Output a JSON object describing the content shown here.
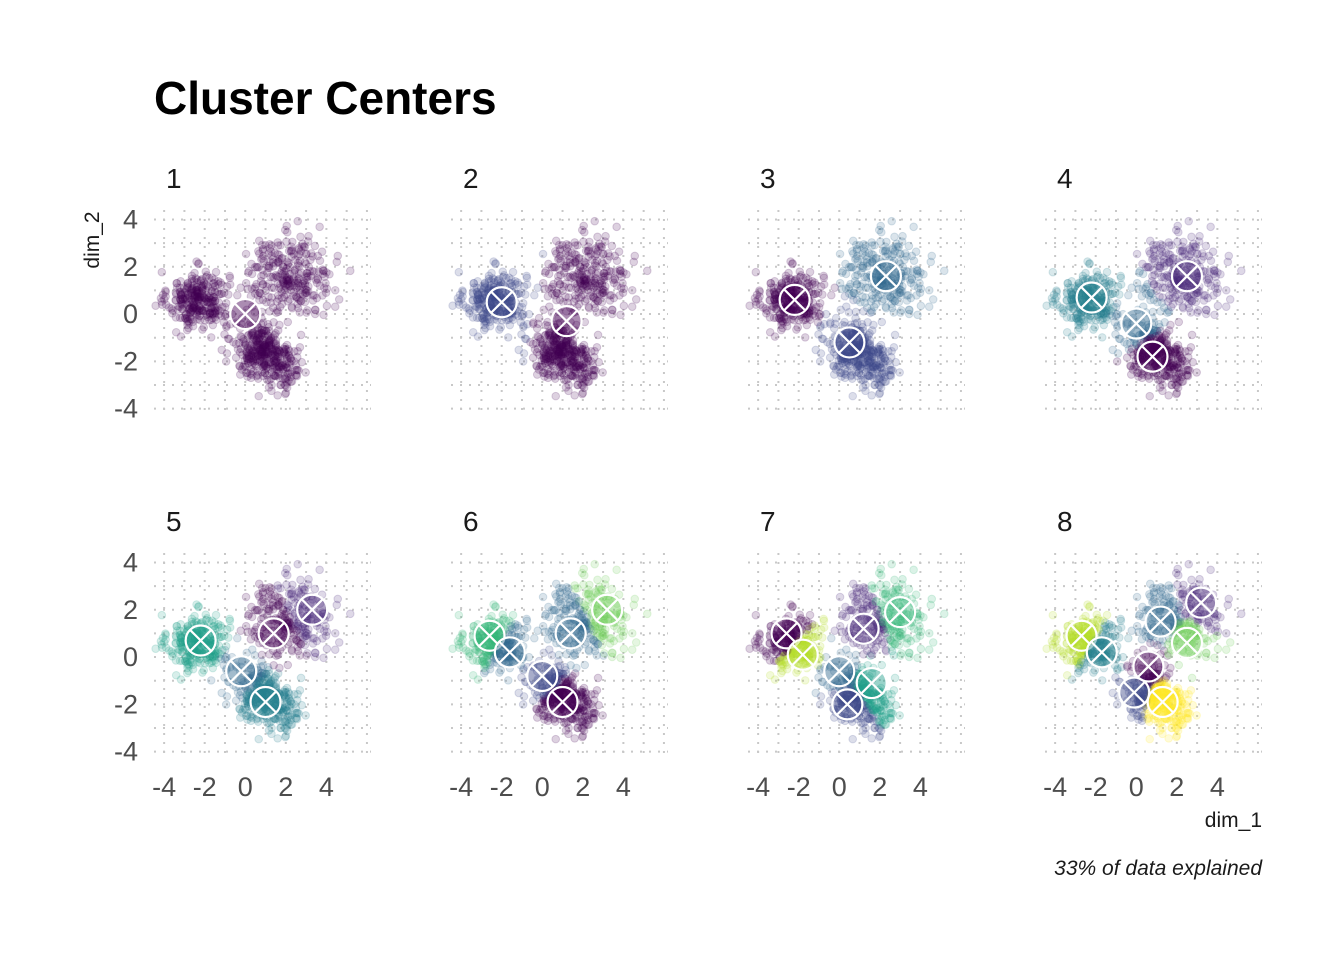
{
  "chart_data": {
    "type": "scatter",
    "title": "Cluster Centers",
    "xlabel": "dim_1",
    "ylabel": "dim_2",
    "caption": "33% of data explained",
    "xlim": [
      -4.5,
      6.2
    ],
    "ylim": [
      -4.1,
      4.4
    ],
    "xticks": [
      -4,
      -2,
      0,
      2,
      4
    ],
    "xtick_labels": [
      "-4",
      "-2",
      "0",
      "2",
      "4"
    ],
    "yticks": [
      4,
      2,
      0,
      -2,
      -4
    ],
    "ytick_labels": [
      "4",
      "2",
      "0",
      "-2",
      "-4"
    ],
    "grid": "dotted",
    "legend": "none",
    "point_opacity": 0.18,
    "palette": "viridis",
    "palette_colors": [
      "#440154",
      "#482878",
      "#3e4989",
      "#31688e",
      "#26828e",
      "#1f9e89",
      "#35b779",
      "#6ece58",
      "#b5de2b",
      "#fde725"
    ],
    "blobs": [
      {
        "x": -2.3,
        "y": 0.6,
        "sx": 1.0,
        "sy": 0.8,
        "n": 300
      },
      {
        "x": 0.8,
        "y": -1.5,
        "sx": 0.9,
        "sy": 0.8,
        "n": 300
      },
      {
        "x": 2.2,
        "y": 1.6,
        "sx": 1.4,
        "sy": 1.1,
        "n": 280
      },
      {
        "x": 2.0,
        "y": -2.4,
        "sx": 0.5,
        "sy": 0.7,
        "n": 80
      }
    ],
    "panels": [
      {
        "k": "1",
        "centers": [
          {
            "x": 0.0,
            "y": 0.0,
            "color": "#440154"
          }
        ]
      },
      {
        "k": "2",
        "centers": [
          {
            "x": -2.0,
            "y": 0.5,
            "color": "#3e4989"
          },
          {
            "x": 1.2,
            "y": -0.3,
            "color": "#440154"
          }
        ]
      },
      {
        "k": "3",
        "centers": [
          {
            "x": -2.2,
            "y": 0.6,
            "color": "#440154"
          },
          {
            "x": 0.5,
            "y": -1.2,
            "color": "#3e4989"
          },
          {
            "x": 2.3,
            "y": 1.6,
            "color": "#31688e"
          }
        ]
      },
      {
        "k": "4",
        "centers": [
          {
            "x": -2.2,
            "y": 0.7,
            "color": "#26828e"
          },
          {
            "x": 0.0,
            "y": -0.4,
            "color": "#31688e"
          },
          {
            "x": 0.8,
            "y": -1.8,
            "color": "#440154"
          },
          {
            "x": 2.5,
            "y": 1.6,
            "color": "#482878"
          }
        ]
      },
      {
        "k": "5",
        "centers": [
          {
            "x": -2.2,
            "y": 0.7,
            "color": "#1f9e89"
          },
          {
            "x": -0.2,
            "y": -0.6,
            "color": "#31688e"
          },
          {
            "x": 1.0,
            "y": -1.9,
            "color": "#26828e"
          },
          {
            "x": 1.4,
            "y": 1.0,
            "color": "#440154"
          },
          {
            "x": 3.3,
            "y": 2.0,
            "color": "#482878"
          }
        ]
      },
      {
        "k": "6",
        "centers": [
          {
            "x": -2.6,
            "y": 0.9,
            "color": "#35b779"
          },
          {
            "x": -1.6,
            "y": 0.2,
            "color": "#31688e"
          },
          {
            "x": 0.0,
            "y": -0.8,
            "color": "#3e4989"
          },
          {
            "x": 1.0,
            "y": -1.9,
            "color": "#440154"
          },
          {
            "x": 1.4,
            "y": 1.0,
            "color": "#31688e"
          },
          {
            "x": 3.2,
            "y": 2.0,
            "color": "#6ece58"
          }
        ]
      },
      {
        "k": "7",
        "centers": [
          {
            "x": -2.6,
            "y": 1.0,
            "color": "#440154"
          },
          {
            "x": -1.8,
            "y": 0.1,
            "color": "#b5de2b"
          },
          {
            "x": 0.0,
            "y": -0.6,
            "color": "#31688e"
          },
          {
            "x": 0.4,
            "y": -2.0,
            "color": "#3e4989"
          },
          {
            "x": 1.2,
            "y": 1.2,
            "color": "#482878"
          },
          {
            "x": 1.6,
            "y": -1.1,
            "color": "#1f9e89"
          },
          {
            "x": 3.0,
            "y": 1.9,
            "color": "#35b779"
          }
        ]
      },
      {
        "k": "8",
        "centers": [
          {
            "x": -2.7,
            "y": 0.9,
            "color": "#b5de2b"
          },
          {
            "x": -1.7,
            "y": 0.2,
            "color": "#26828e"
          },
          {
            "x": -0.1,
            "y": -1.5,
            "color": "#3e4989"
          },
          {
            "x": 0.6,
            "y": -0.4,
            "color": "#440154"
          },
          {
            "x": 1.3,
            "y": -1.9,
            "color": "#fde725"
          },
          {
            "x": 1.2,
            "y": 1.5,
            "color": "#31688e"
          },
          {
            "x": 2.5,
            "y": 0.6,
            "color": "#6ece58"
          },
          {
            "x": 3.2,
            "y": 2.3,
            "color": "#482878"
          }
        ]
      }
    ]
  }
}
